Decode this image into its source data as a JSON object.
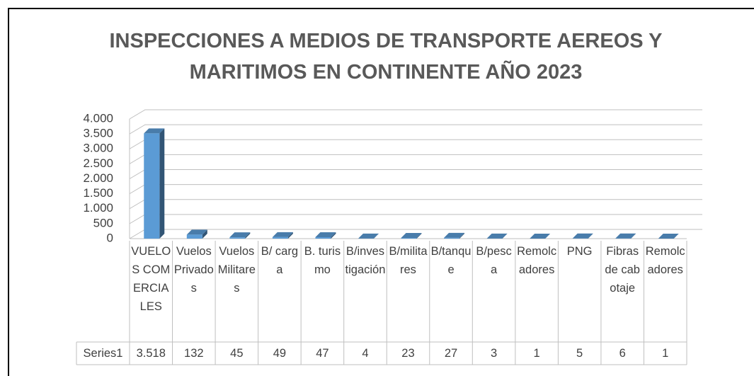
{
  "chart_data": {
    "type": "bar3d",
    "title": "INSPECCIONES A MEDIOS DE TRANSPORTE  AEREOS Y MARITIMOS EN CONTINENTE AÑO 2023",
    "categories": [
      "VUELOS COMERCIALES",
      "Vuelos Privados",
      "Vuelos Militares",
      "B/ carga",
      "B. turismo",
      "B/investigación",
      "B/militares",
      "B/tanque",
      "B/pesca",
      "Remolcadores",
      "PNG",
      "Fibras de cabotaje",
      "Remolcadores"
    ],
    "series": [
      {
        "name": "Series1",
        "color": "#5b9bd5",
        "values": [
          3518,
          132,
          45,
          49,
          47,
          4,
          23,
          27,
          3,
          1,
          5,
          6,
          1
        ],
        "value_labels": [
          "3.518",
          "132",
          "45",
          "49",
          "47",
          "4",
          "23",
          "27",
          "3",
          "1",
          "5",
          "6",
          "1"
        ]
      }
    ],
    "ylim": [
      0,
      4000
    ],
    "yticks": [
      0,
      500,
      {
        "value": 1000,
        "label": "1.000"
      },
      {
        "value": 1500,
        "label": "1.500"
      },
      {
        "value": 2000,
        "label": "2.000"
      },
      {
        "value": 2500,
        "label": "2.500"
      },
      {
        "value": 3000,
        "label": "3.000"
      },
      {
        "value": 3500,
        "label": "3.500"
      },
      {
        "value": 4000,
        "label": "4.000"
      }
    ],
    "grid": true
  }
}
